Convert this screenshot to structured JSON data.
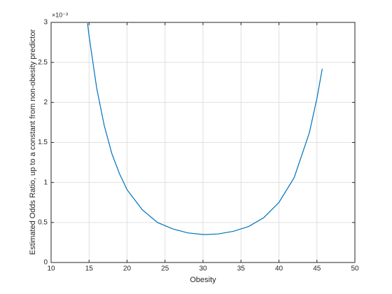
{
  "chart_data": {
    "type": "line",
    "xlabel": "Obesity",
    "ylabel": "Estimated Odds Ratio, up to a constant from non-obesity predictor",
    "y_exponent_label": "×10⁻³",
    "x": [
      14.8,
      15,
      16,
      17,
      18,
      19,
      20,
      22,
      24,
      26,
      28,
      30,
      30.5,
      32,
      34,
      36,
      38,
      40,
      42,
      44,
      45,
      45.7
    ],
    "series": [
      {
        "color": "#0072bd",
        "values": [
          2.99,
          2.83,
          2.18,
          1.71,
          1.36,
          1.11,
          0.91,
          0.66,
          0.5,
          0.42,
          0.37,
          0.35,
          0.35,
          0.357,
          0.39,
          0.45,
          0.56,
          0.75,
          1.06,
          1.62,
          2.05,
          2.42
        ]
      }
    ],
    "xlim": [
      10,
      50
    ],
    "xticks": [
      10,
      15,
      20,
      25,
      30,
      35,
      40,
      45,
      50
    ],
    "ylim": [
      0,
      3
    ],
    "yticks": [
      0,
      0.5,
      1,
      1.5,
      2,
      2.5,
      3
    ],
    "grid": true
  }
}
